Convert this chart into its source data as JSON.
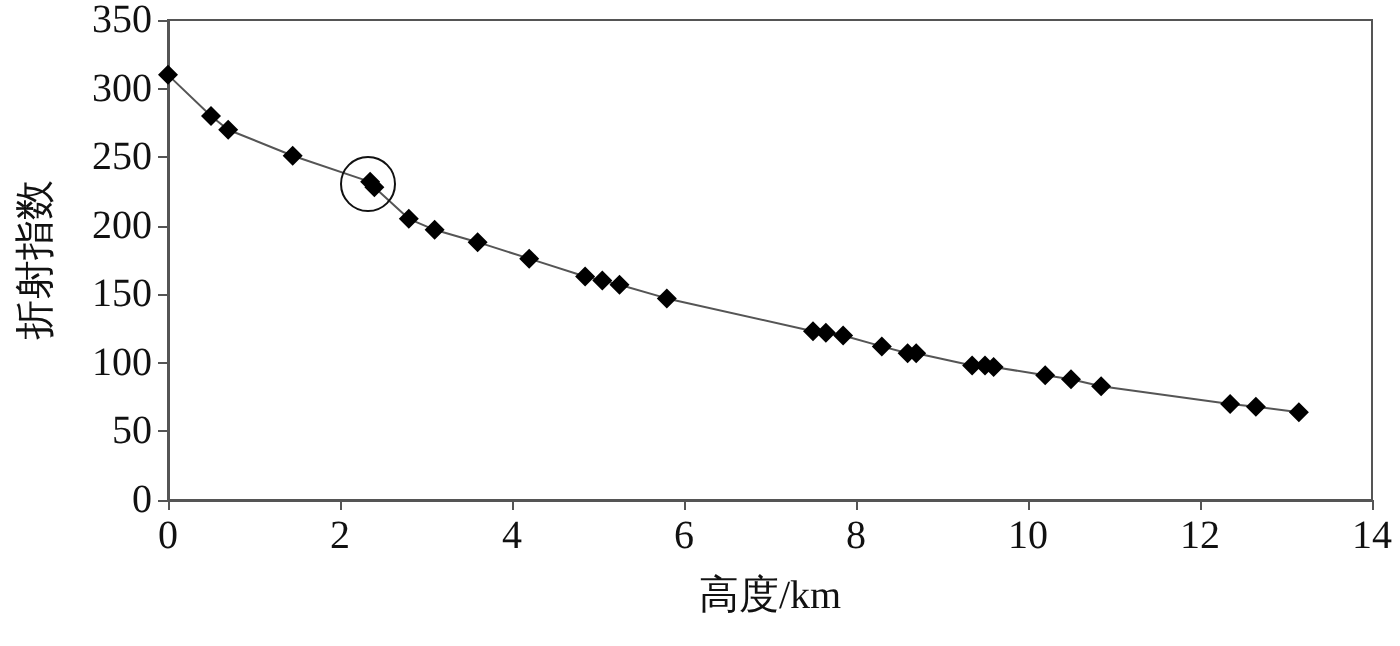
{
  "chart_data": {
    "type": "line",
    "xlabel": "高度/km",
    "ylabel": "折射指数",
    "x": [
      0,
      0.5,
      0.7,
      1.45,
      2.35,
      2.4,
      2.8,
      3.1,
      3.6,
      4.2,
      4.85,
      5.05,
      5.25,
      5.8,
      7.5,
      7.65,
      7.85,
      8.3,
      8.6,
      8.7,
      9.35,
      9.5,
      9.6,
      10.2,
      10.5,
      10.85,
      12.35,
      12.65,
      13.15
    ],
    "series": [
      {
        "color": "#000000",
        "values": [
          310,
          280,
          270,
          251,
          232,
          228,
          205,
          197,
          188,
          176,
          163,
          160,
          157,
          147,
          123,
          122,
          120,
          112,
          107,
          107,
          98,
          98,
          97,
          91,
          88,
          83,
          70,
          68,
          64
        ]
      }
    ],
    "xlim": [
      0,
      14
    ],
    "xticks": [
      0,
      2,
      4,
      6,
      8,
      10,
      12,
      14
    ],
    "ylim": [
      0,
      350
    ],
    "yticks": [
      0,
      50,
      100,
      150,
      200,
      250,
      300,
      350
    ],
    "grid": false,
    "marker": "diamond",
    "line_style": "solid"
  }
}
